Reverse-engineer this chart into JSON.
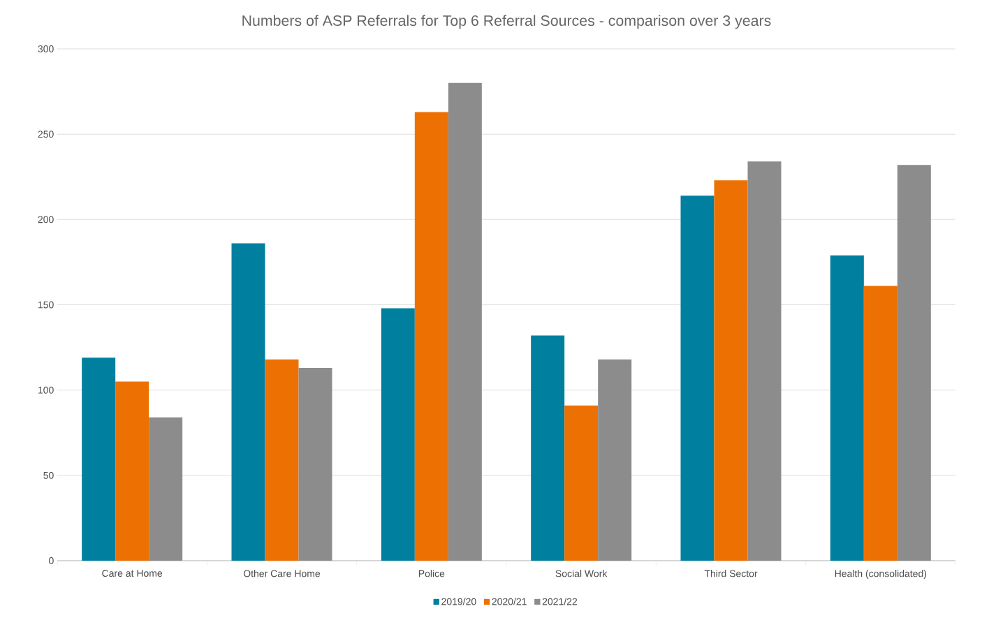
{
  "chart_data": {
    "type": "bar",
    "title": "Numbers of ASP Referrals for Top 6 Referral Sources - comparison over 3 years",
    "categories": [
      "Care at Home",
      "Other Care Home",
      "Police",
      "Social Work",
      "Third Sector",
      "Health (consolidated)"
    ],
    "series": [
      {
        "name": "2019/20",
        "color": "#007f9f",
        "values": [
          119,
          186,
          148,
          132,
          214,
          179
        ]
      },
      {
        "name": "2020/21",
        "color": "#ed7102",
        "values": [
          105,
          118,
          263,
          91,
          223,
          161
        ]
      },
      {
        "name": "2021/22",
        "color": "#8c8c8c",
        "values": [
          84,
          113,
          280,
          118,
          234,
          232
        ]
      }
    ],
    "ylim": [
      0,
      300
    ],
    "yticks": [
      0,
      50,
      100,
      150,
      200,
      250,
      300
    ],
    "grid": "y",
    "legend": "bottom"
  }
}
